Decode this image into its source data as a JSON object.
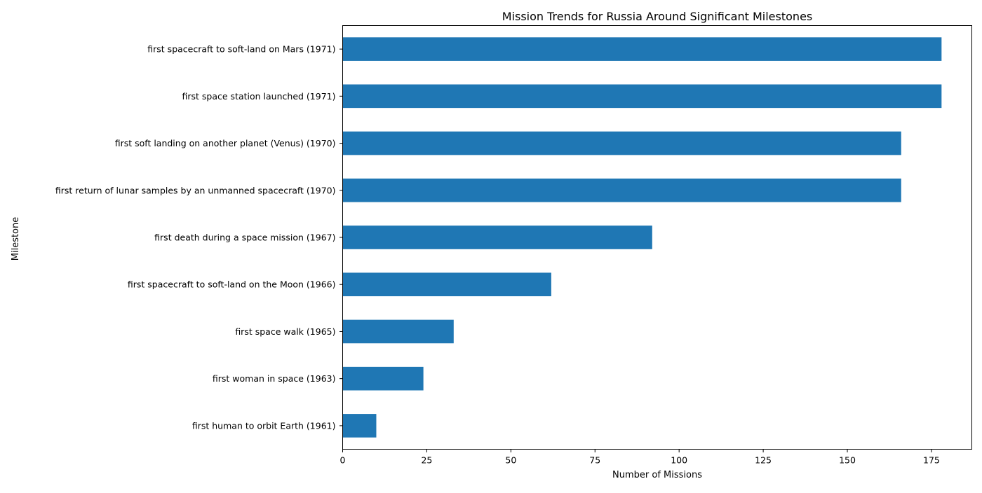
{
  "chart_data": {
    "type": "bar",
    "orientation": "horizontal",
    "title": "Mission Trends for Russia Around Significant Milestones",
    "xlabel": "Number of Missions",
    "ylabel": "Milestone",
    "xlim": [
      0,
      187
    ],
    "xticks": [
      0,
      25,
      50,
      75,
      100,
      125,
      150,
      175
    ],
    "grid": false,
    "bar_color": "#1f77b4",
    "categories": [
      "first human to orbit Earth (1961)",
      "first woman in space (1963)",
      "first space walk (1965)",
      "first spacecraft to soft-land on the Moon (1966)",
      "first death during a space mission (1967)",
      "first return of lunar samples by an unmanned spacecraft (1970)",
      "first soft landing on another planet (Venus) (1970)",
      "first space station launched (1971)",
      "first spacecraft to soft-land on Mars (1971)"
    ],
    "values": [
      10,
      24,
      33,
      62,
      92,
      166,
      166,
      178,
      178
    ]
  }
}
